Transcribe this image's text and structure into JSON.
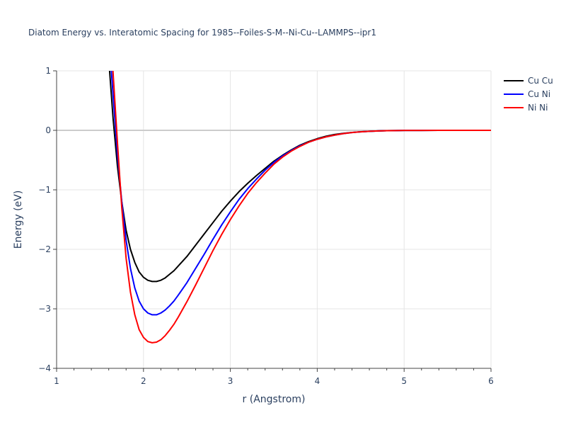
{
  "chart_data": {
    "type": "line",
    "title": "Diatom Energy vs. Interatomic Spacing for 1985--Foiles-S-M--Ni-Cu--LAMMPS--ipr1",
    "xlabel": "r (Angstrom)",
    "ylabel": "Energy (eV)",
    "xlim": [
      1,
      6
    ],
    "ylim": [
      -4,
      1
    ],
    "x_ticks": [
      "1",
      "2",
      "3",
      "4",
      "5",
      "6"
    ],
    "y_ticks": [
      "1",
      "0",
      "−1",
      "−2",
      "−3",
      "−4"
    ],
    "grid": true,
    "legend_position": "top-right",
    "series": [
      {
        "name": "Cu Cu",
        "color": "#000000",
        "x": [
          1.6,
          1.65,
          1.7,
          1.75,
          1.8,
          1.85,
          1.9,
          1.95,
          2.0,
          2.05,
          2.1,
          2.15,
          2.2,
          2.25,
          2.3,
          2.35,
          2.4,
          2.5,
          2.6,
          2.7,
          2.8,
          2.9,
          3.0,
          3.1,
          3.2,
          3.3,
          3.4,
          3.5,
          3.6,
          3.7,
          3.8,
          3.9,
          4.0,
          4.1,
          4.2,
          4.3,
          4.4,
          4.5,
          4.6,
          4.7,
          4.8,
          4.9,
          5.0,
          5.2,
          5.4,
          5.6,
          5.8,
          6.0
        ],
        "y": [
          1.2,
          0.2,
          -0.6,
          -1.2,
          -1.68,
          -2.0,
          -2.22,
          -2.38,
          -2.47,
          -2.52,
          -2.54,
          -2.54,
          -2.52,
          -2.48,
          -2.42,
          -2.36,
          -2.28,
          -2.12,
          -1.93,
          -1.74,
          -1.55,
          -1.36,
          -1.19,
          -1.03,
          -0.89,
          -0.76,
          -0.64,
          -0.52,
          -0.42,
          -0.33,
          -0.25,
          -0.19,
          -0.14,
          -0.1,
          -0.07,
          -0.05,
          -0.035,
          -0.024,
          -0.016,
          -0.01,
          -0.006,
          -0.004,
          -0.002,
          -0.001,
          0.0,
          0.0,
          0.0,
          0.0
        ]
      },
      {
        "name": "Cu Ni",
        "color": "#0000ff",
        "x": [
          1.62,
          1.65,
          1.7,
          1.75,
          1.8,
          1.85,
          1.9,
          1.95,
          2.0,
          2.05,
          2.1,
          2.15,
          2.2,
          2.25,
          2.3,
          2.35,
          2.4,
          2.5,
          2.6,
          2.7,
          2.8,
          2.9,
          3.0,
          3.1,
          3.2,
          3.3,
          3.4,
          3.5,
          3.6,
          3.7,
          3.8,
          3.9,
          4.0,
          4.1,
          4.2,
          4.3,
          4.4,
          4.5,
          4.6,
          4.7,
          4.8,
          4.9,
          5.0,
          5.2,
          5.4,
          5.6,
          5.8,
          6.0
        ],
        "y": [
          1.2,
          0.6,
          -0.4,
          -1.2,
          -1.85,
          -2.32,
          -2.65,
          -2.87,
          -3.0,
          -3.07,
          -3.1,
          -3.1,
          -3.07,
          -3.02,
          -2.95,
          -2.87,
          -2.77,
          -2.56,
          -2.32,
          -2.08,
          -1.83,
          -1.59,
          -1.37,
          -1.16,
          -0.98,
          -0.82,
          -0.67,
          -0.54,
          -0.43,
          -0.34,
          -0.26,
          -0.2,
          -0.15,
          -0.11,
          -0.08,
          -0.055,
          -0.037,
          -0.025,
          -0.016,
          -0.01,
          -0.006,
          -0.004,
          -0.002,
          -0.001,
          0.0,
          0.0,
          0.0,
          0.0
        ]
      },
      {
        "name": "Ni Ni",
        "color": "#ff0000",
        "x": [
          1.64,
          1.67,
          1.7,
          1.75,
          1.8,
          1.85,
          1.9,
          1.95,
          2.0,
          2.05,
          2.1,
          2.15,
          2.2,
          2.25,
          2.3,
          2.35,
          2.4,
          2.5,
          2.6,
          2.7,
          2.8,
          2.9,
          3.0,
          3.1,
          3.2,
          3.3,
          3.4,
          3.5,
          3.6,
          3.7,
          3.8,
          3.9,
          4.0,
          4.1,
          4.2,
          4.3,
          4.4,
          4.5,
          4.6,
          4.7,
          4.8,
          4.9,
          5.0,
          5.2,
          5.4,
          5.6,
          5.8,
          6.0
        ],
        "y": [
          1.2,
          0.5,
          -0.2,
          -1.3,
          -2.15,
          -2.72,
          -3.1,
          -3.35,
          -3.48,
          -3.55,
          -3.57,
          -3.56,
          -3.52,
          -3.45,
          -3.36,
          -3.26,
          -3.14,
          -2.88,
          -2.6,
          -2.31,
          -2.02,
          -1.75,
          -1.5,
          -1.27,
          -1.06,
          -0.88,
          -0.72,
          -0.57,
          -0.45,
          -0.35,
          -0.27,
          -0.2,
          -0.15,
          -0.11,
          -0.08,
          -0.055,
          -0.037,
          -0.025,
          -0.016,
          -0.01,
          -0.006,
          -0.004,
          -0.002,
          -0.001,
          0.0,
          0.0,
          0.0,
          0.0
        ]
      }
    ]
  }
}
